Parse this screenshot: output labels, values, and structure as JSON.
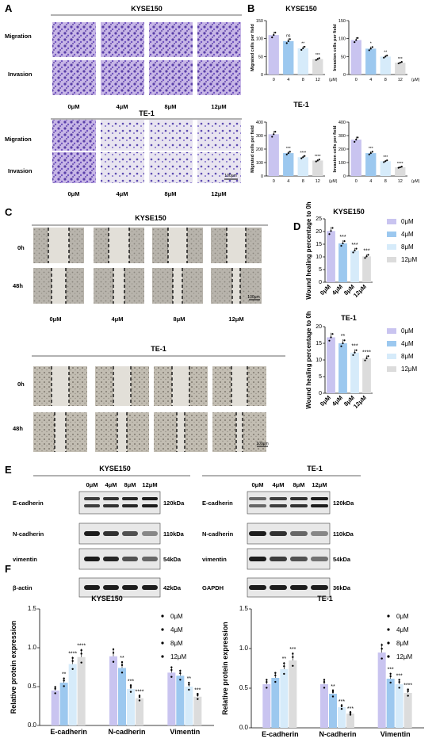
{
  "panels": {
    "A": "A",
    "B": "B",
    "C": "C",
    "D": "D",
    "E": "E",
    "F": "F"
  },
  "panelA": {
    "titles": [
      "KYSE150",
      "TE-1"
    ],
    "rows": [
      "Migration",
      "Invasion"
    ],
    "cols": [
      "0μM",
      "4μM",
      "8μM",
      "12μM"
    ],
    "scale": "100μm"
  },
  "panelC": {
    "titles": [
      "KYSE150",
      "TE-1"
    ],
    "rows": [
      "0h",
      "48h"
    ],
    "cols": [
      "0μM",
      "4μM",
      "8μM",
      "12μM"
    ],
    "scale": "100μm"
  },
  "panelE": {
    "titles": [
      "KYSE150",
      "TE-1"
    ],
    "cols": [
      "0μM",
      "4μM",
      "8μM",
      "12μM"
    ],
    "left_proteins": [
      "E-cadherin",
      "N-cadherin",
      "vimentin",
      "β-actin"
    ],
    "right_proteins": [
      "E-cadherin",
      "N-cadherin",
      "vimentin",
      "GAPDH"
    ],
    "left_kda": [
      "120kDa",
      "110kDa",
      "54kDa",
      "42kDa"
    ],
    "right_kda": [
      "120kDa",
      "110kDa",
      "54kDa",
      "36kDa"
    ]
  },
  "colors": {
    "c0": "#c9c4f0",
    "c4": "#9cc8ef",
    "c8": "#d6ebfa",
    "c12": "#dcdcdc",
    "migration_purple": "#5a3fa8",
    "wound_gray": "#9a9a9a"
  },
  "chart_data": [
    {
      "id": "B-K-mig",
      "type": "bar",
      "title": "KYSE150",
      "categories": [
        "0",
        "4",
        "8",
        "12"
      ],
      "values": [
        110,
        93,
        73,
        43
      ],
      "ylabel": "Migrated cells per field",
      "xlabel": "(μM)",
      "ylim": [
        0,
        150
      ],
      "yticks": [
        "0",
        "50",
        "100",
        "150"
      ],
      "sig": [
        "",
        "ns",
        "**",
        "***"
      ]
    },
    {
      "id": "B-K-inv",
      "type": "bar",
      "title": "",
      "categories": [
        "0",
        "4",
        "8",
        "12"
      ],
      "values": [
        96,
        72,
        50,
        33
      ],
      "ylabel": "Invasion cells per field",
      "xlabel": "(μM)",
      "ylim": [
        0,
        150
      ],
      "yticks": [
        "0",
        "50",
        "100",
        "150"
      ],
      "sig": [
        "",
        "*",
        "**",
        "***"
      ]
    },
    {
      "id": "B-T-mig",
      "type": "bar",
      "title": "TE-1",
      "categories": [
        "0",
        "4",
        "8",
        "12"
      ],
      "values": [
        310,
        170,
        140,
        115
      ],
      "ylabel": "Migrated cells per field",
      "xlabel": "(μM)",
      "ylim": [
        0,
        400
      ],
      "yticks": [
        "0",
        "100",
        "200",
        "300",
        "400"
      ],
      "sig": [
        "",
        "***",
        "****",
        "****"
      ]
    },
    {
      "id": "B-T-inv",
      "type": "bar",
      "title": "",
      "categories": [
        "0",
        "4",
        "8",
        "12"
      ],
      "values": [
        270,
        170,
        110,
        65
      ],
      "ylabel": "Invasion cells per field",
      "xlabel": "(μM)",
      "ylim": [
        0,
        400
      ],
      "yticks": [
        "0",
        "100",
        "200",
        "300",
        "400"
      ],
      "sig": [
        "",
        "***",
        "***",
        "****"
      ]
    },
    {
      "id": "D-K",
      "type": "bar",
      "title": "KYSE150",
      "categories": [
        "0μM",
        "4μM",
        "8μM",
        "12μM"
      ],
      "values": [
        20.2,
        15.3,
        12.5,
        10.2
      ],
      "ylabel": "Wound healing percentage to 0h",
      "ylim": [
        0,
        25
      ],
      "yticks": [
        "0",
        "5",
        "10",
        "15",
        "20",
        "25"
      ],
      "sig": [
        "",
        "***",
        "***",
        "***"
      ],
      "legend": [
        "0μM",
        "4μM",
        "8μM",
        "12μM"
      ]
    },
    {
      "id": "D-T",
      "type": "bar",
      "title": "TE-1",
      "categories": [
        "0μM",
        "4μM",
        "8μM",
        "12μM"
      ],
      "values": [
        16.8,
        15.0,
        12.2,
        10.5
      ],
      "ylabel": "Wound healing percentage to 0h",
      "ylim": [
        0,
        20
      ],
      "yticks": [
        "0",
        "5",
        "10",
        "15",
        "20"
      ],
      "sig": [
        "",
        "**",
        "***",
        "****"
      ],
      "legend": [
        "0μM",
        "4μM",
        "8μM",
        "12μM"
      ]
    },
    {
      "id": "F-K",
      "type": "bar",
      "title": "KYSE150",
      "categories": [
        "E-cadherin",
        "N-cadherin",
        "Vimentin"
      ],
      "series": [
        {
          "name": "0μM",
          "values": [
            0.45,
            0.89,
            0.68
          ]
        },
        {
          "name": "4μM",
          "values": [
            0.55,
            0.74,
            0.64
          ]
        },
        {
          "name": "8μM",
          "values": [
            0.79,
            0.47,
            0.5
          ]
        },
        {
          "name": "12μM",
          "values": [
            0.88,
            0.35,
            0.37
          ]
        }
      ],
      "sig": [
        [
          "",
          "**",
          "****",
          "****"
        ],
        [
          "",
          "**",
          "***",
          "****"
        ],
        [
          "",
          "",
          "**",
          "***"
        ]
      ],
      "ylabel": "Relative protein expression",
      "ylim": [
        0,
        1.5
      ],
      "yticks": [
        "0.0",
        "0.5",
        "1.0",
        "1.5"
      ]
    },
    {
      "id": "F-T",
      "type": "bar",
      "title": "TE-1",
      "categories": [
        "E-cadherin",
        "N-cadherin",
        "Vimentin"
      ],
      "series": [
        {
          "name": "0μM",
          "values": [
            0.55,
            0.55,
            0.95
          ]
        },
        {
          "name": "4μM",
          "values": [
            0.63,
            0.43,
            0.62
          ]
        },
        {
          "name": "8μM",
          "values": [
            0.74,
            0.26,
            0.55
          ]
        },
        {
          "name": "12μM",
          "values": [
            0.85,
            0.18,
            0.44
          ]
        }
      ],
      "sig": [
        [
          "",
          "",
          "**",
          "***"
        ],
        [
          "",
          "**",
          "***",
          "***"
        ],
        [
          "",
          "***",
          "***",
          "****"
        ]
      ],
      "ylabel": "Relative protein expression",
      "ylim": [
        0,
        1.5
      ],
      "yticks": [
        "0.0",
        "0.5",
        "1.0",
        "1.5"
      ]
    }
  ]
}
